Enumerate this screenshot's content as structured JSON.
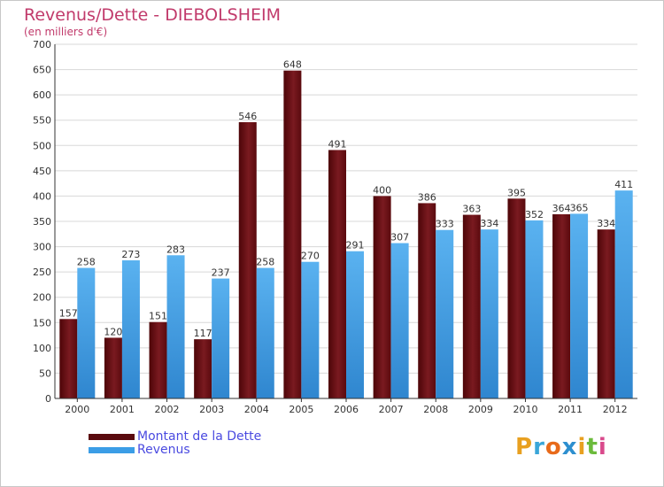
{
  "title": "Revenus/Dette - DIEBOLSHEIM",
  "subtitle": "(en milliers d'€)",
  "legend": {
    "dette": "Montant de la Dette",
    "revenus": "Revenus"
  },
  "logo": "Proxiti",
  "colors": {
    "dette": "#6b0d12",
    "revenus": "#3b9de6",
    "grid": "#d8d8d8",
    "title": "#c13a6b"
  },
  "chart_data": {
    "type": "bar",
    "title": "Revenus/Dette - DIEBOLSHEIM",
    "ylabel": "(en milliers d'€)",
    "categories": [
      "2000",
      "2001",
      "2002",
      "2003",
      "2004",
      "2005",
      "2006",
      "2007",
      "2008",
      "2009",
      "2010",
      "2011",
      "2012"
    ],
    "series": [
      {
        "name": "Montant de la Dette",
        "values": [
          157,
          120,
          151,
          117,
          546,
          648,
          491,
          400,
          386,
          363,
          395,
          364,
          334
        ]
      },
      {
        "name": "Revenus",
        "values": [
          258,
          273,
          283,
          237,
          258,
          270,
          291,
          307,
          333,
          334,
          352,
          365,
          411
        ]
      }
    ],
    "ylim": [
      0,
      700
    ],
    "yticks": [
      0,
      50,
      100,
      150,
      200,
      250,
      300,
      350,
      400,
      450,
      500,
      550,
      600,
      650,
      700
    ],
    "grid": true,
    "legend_position": "bottom-left"
  }
}
